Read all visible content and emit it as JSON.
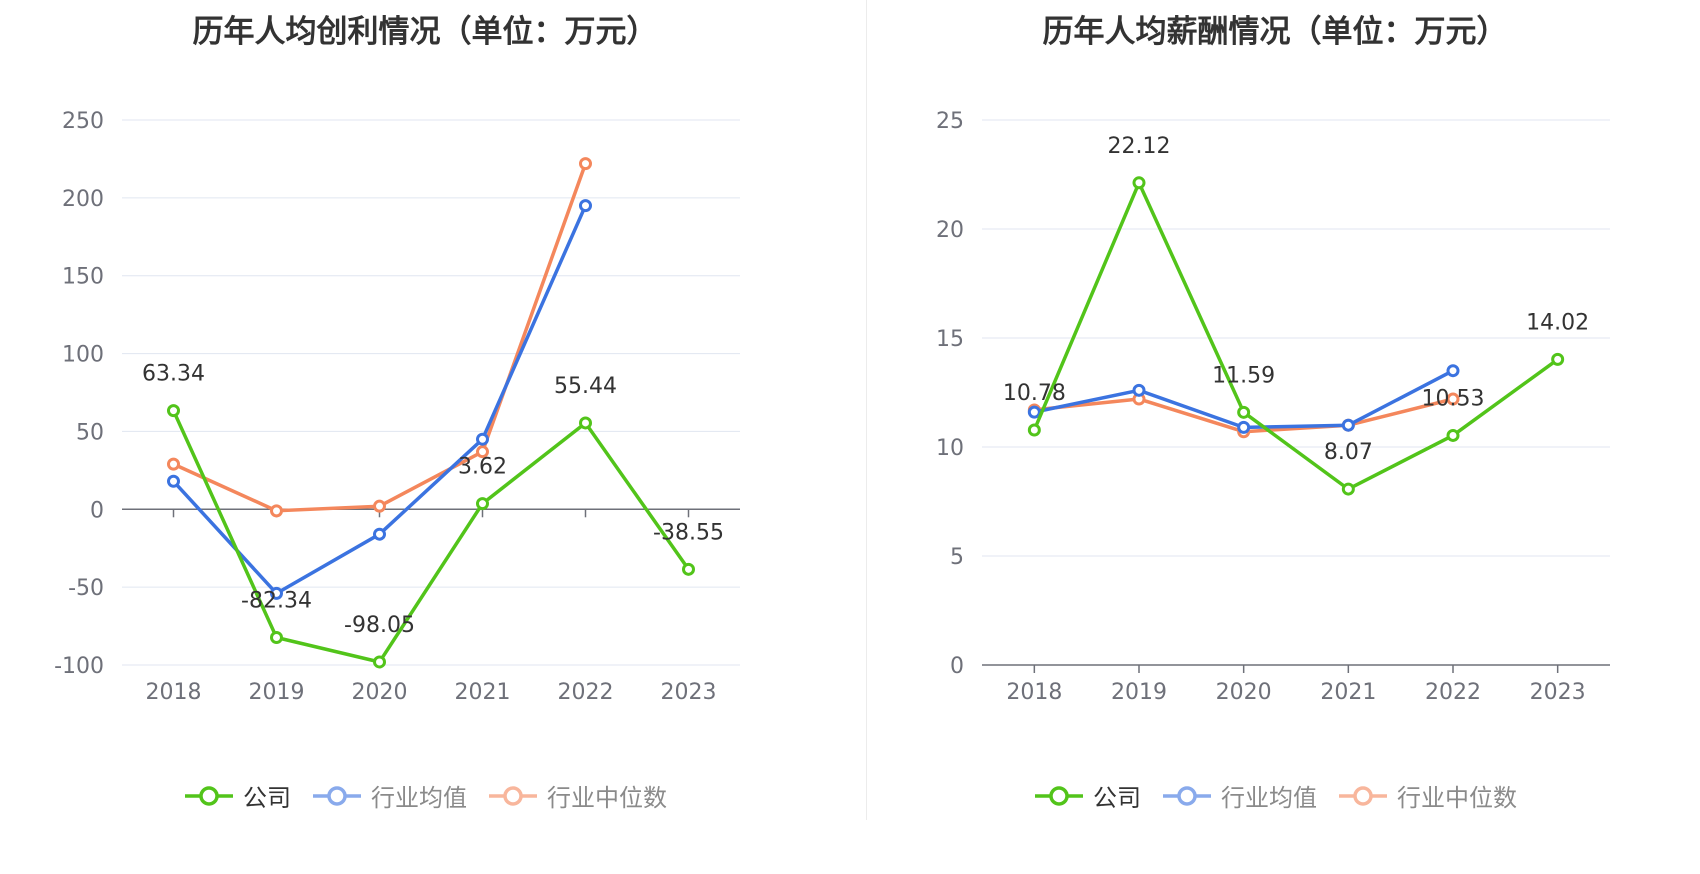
{
  "chart_data": [
    {
      "type": "line",
      "title": "历年人均创利情况（单位：万元）",
      "categories": [
        "2018",
        "2019",
        "2020",
        "2021",
        "2022",
        "2023"
      ],
      "ylim": [
        -100,
        250
      ],
      "yticks": [
        "250",
        "200",
        "150",
        "100",
        "50",
        "0",
        "-50",
        "-100"
      ],
      "series": [
        {
          "name": "公司",
          "color": "#52c41a",
          "values": [
            63.34,
            -82.34,
            -98.05,
            3.62,
            55.44,
            -38.55
          ],
          "labels": [
            "63.34",
            "-82.34",
            "-98.05",
            "3.62",
            "55.44",
            "-38.55"
          ]
        },
        {
          "name": "行业均值",
          "color": "#3b73e0",
          "values": [
            18,
            -54,
            -16,
            45,
            195,
            null
          ]
        },
        {
          "name": "行业中位数",
          "color": "#f4875c",
          "values": [
            29,
            -1,
            2,
            37,
            222,
            null
          ]
        }
      ],
      "grid": true,
      "legend": "bottom"
    },
    {
      "type": "line",
      "title": "历年人均薪酬情况（单位：万元）",
      "categories": [
        "2018",
        "2019",
        "2020",
        "2021",
        "2022",
        "2023"
      ],
      "ylim": [
        0,
        25
      ],
      "yticks": [
        "25",
        "20",
        "15",
        "10",
        "5",
        "0"
      ],
      "series": [
        {
          "name": "公司",
          "color": "#52c41a",
          "values": [
            10.78,
            22.12,
            11.59,
            8.07,
            10.53,
            14.02
          ],
          "labels": [
            "10.78",
            "22.12",
            "11.59",
            "8.07",
            "10.53",
            "14.02"
          ]
        },
        {
          "name": "行业均值",
          "color": "#3b73e0",
          "values": [
            11.6,
            12.6,
            10.9,
            11.0,
            13.5,
            null
          ]
        },
        {
          "name": "行业中位数",
          "color": "#f4875c",
          "values": [
            11.7,
            12.2,
            10.7,
            11.0,
            12.2,
            null
          ]
        }
      ],
      "grid": true,
      "legend": "bottom"
    }
  ]
}
